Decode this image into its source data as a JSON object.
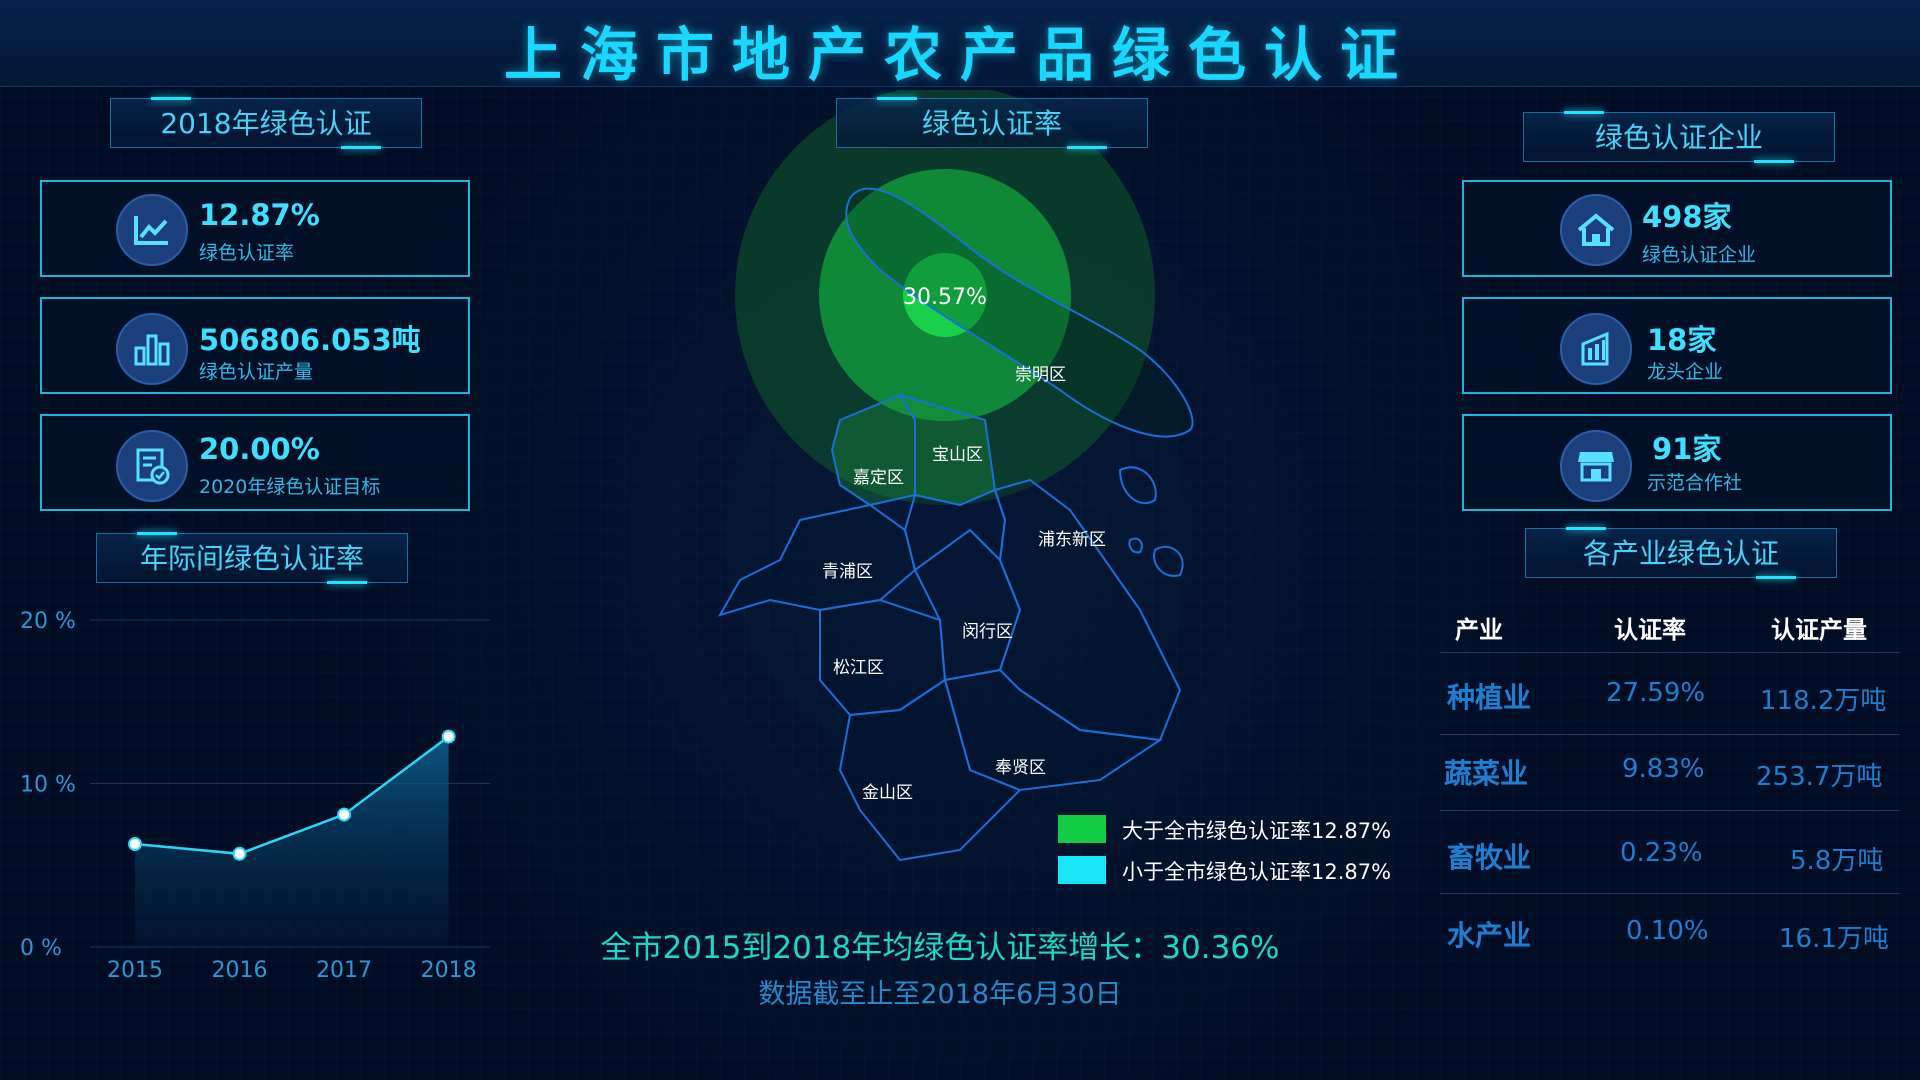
{
  "page": {
    "title": "上海市地产农产品绿色认证"
  },
  "left": {
    "section_title": "2018年绿色认证",
    "cards": [
      {
        "icon": "line-chart-icon",
        "value": "12.87%",
        "label": "绿色认证率"
      },
      {
        "icon": "bar-chart-icon",
        "value": "506806.053吨",
        "label": "绿色认证产量"
      },
      {
        "icon": "document-check-icon",
        "value": "20.00%",
        "label": "2020年绿色认证目标"
      }
    ],
    "trend_title": "年际间绿色认证率"
  },
  "center": {
    "section_title": "绿色认证率",
    "highlight_value": "30.57%",
    "districts": [
      "崇明区",
      "宝山区",
      "嘉定区",
      "浦东新区",
      "青浦区",
      "闵行区",
      "松江区",
      "奉贤区",
      "金山区"
    ],
    "legend": [
      {
        "label": "大于全市绿色认证率12.87%",
        "color": "#12cc44"
      },
      {
        "label": "小于全市绿色认证率12.87%",
        "color": "#19e6f7"
      }
    ],
    "summary_line": "全市2015到2018年均绿色认证率增长：30.36%",
    "date_line": "数据截至止至2018年6月30日"
  },
  "right": {
    "section_title": "绿色认证企业",
    "cards": [
      {
        "icon": "house-icon",
        "value": "498家",
        "label": "绿色认证企业"
      },
      {
        "icon": "building-icon",
        "value": "18家",
        "label": "龙头企业"
      },
      {
        "icon": "store-icon",
        "value": "91家",
        "label": "示范合作社"
      }
    ],
    "industry_title": "各产业绿色认证",
    "table": {
      "headers": [
        "产业",
        "认证率",
        "认证产量"
      ],
      "rows": [
        {
          "industry": "种植业",
          "rate": "27.59%",
          "output": "118.2万吨"
        },
        {
          "industry": "蔬菜业",
          "rate": "9.83%",
          "output": "253.7万吨"
        },
        {
          "industry": "畜牧业",
          "rate": "0.23%",
          "output": "5.8万吨"
        },
        {
          "industry": "水产业",
          "rate": "0.10%",
          "output": "16.1万吨"
        }
      ]
    }
  },
  "chart_data": {
    "type": "area",
    "title": "年际间绿色认证率",
    "categories": [
      "2015",
      "2016",
      "2017",
      "2018"
    ],
    "values": [
      6.3,
      5.7,
      8.1,
      12.87
    ],
    "y_ticks": [
      "20 %",
      "10 %",
      "0 %"
    ],
    "ylim": [
      0,
      20
    ],
    "xlabel": "",
    "ylabel": "",
    "grid": true,
    "colors": {
      "line": "#2bd7f5",
      "fill": "#0a4a73"
    }
  }
}
